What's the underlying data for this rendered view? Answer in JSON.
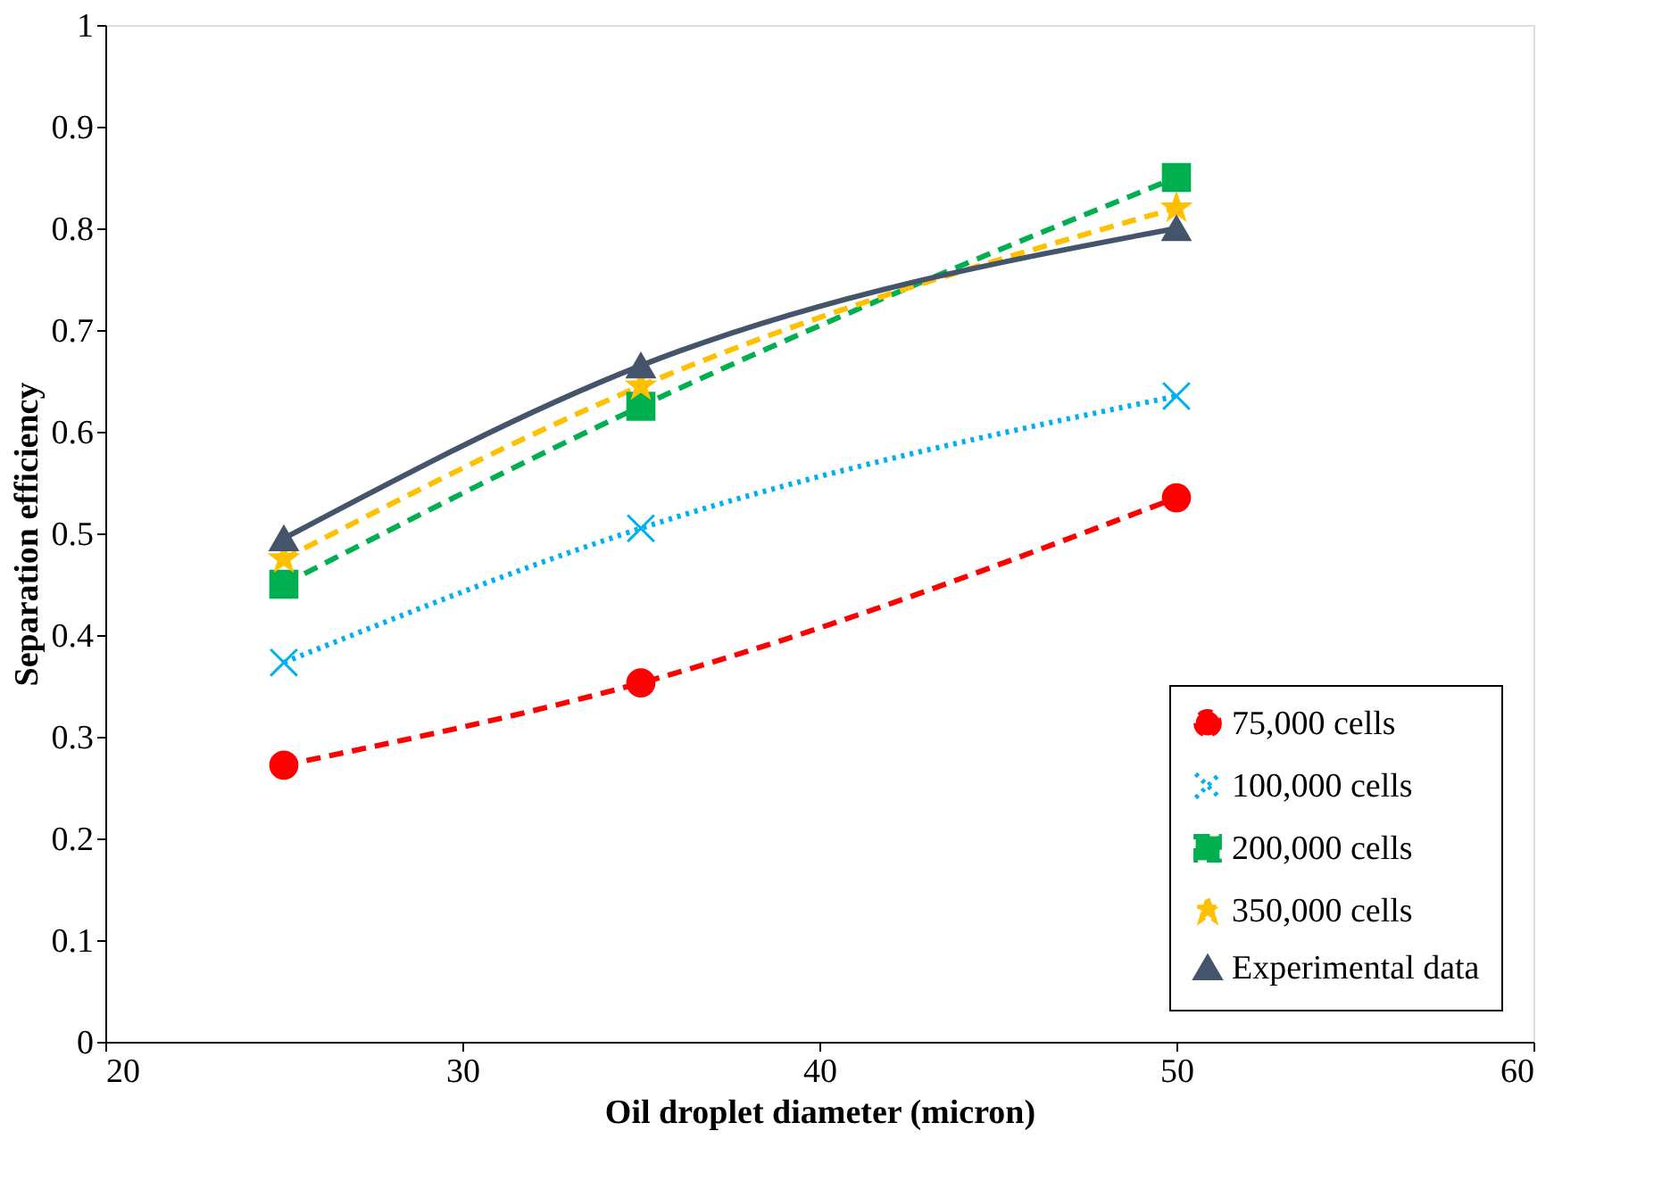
{
  "chart_data": {
    "type": "line",
    "xlabel": "Oil droplet diameter (micron)",
    "ylabel": "Separation efficiency",
    "x": [
      25,
      35,
      50
    ],
    "xlim": [
      20,
      60
    ],
    "xticks": [
      20,
      30,
      40,
      50,
      60
    ],
    "ylim": [
      0,
      1
    ],
    "yticks": [
      0,
      0.1,
      0.2,
      0.3,
      0.4,
      0.5,
      0.6,
      0.7,
      0.8,
      0.9,
      1
    ],
    "grid": false,
    "legend": "bottom right",
    "series": [
      {
        "name": "75,000 cells",
        "color": "#ff0000",
        "values": [
          0.272,
          0.353,
          0.535
        ],
        "marker": "circle",
        "line_style": "dashed"
      },
      {
        "name": "100,000 cells",
        "color": "#00b0f0",
        "values": [
          0.373,
          0.505,
          0.635
        ],
        "marker": "cross",
        "line_style": "dotted"
      },
      {
        "name": "200,000 cells",
        "color": "#00b050",
        "values": [
          0.45,
          0.625,
          0.85
        ],
        "marker": "square",
        "line_style": "dashed"
      },
      {
        "name": "350,000 cells",
        "color": "#ffc000",
        "values": [
          0.475,
          0.645,
          0.82
        ],
        "marker": "star",
        "line_style": "dashed"
      },
      {
        "name": "Experimental data",
        "color": "#44546a",
        "values": [
          0.495,
          0.665,
          0.8
        ],
        "marker": "triangle",
        "line_style": "solid"
      }
    ]
  }
}
